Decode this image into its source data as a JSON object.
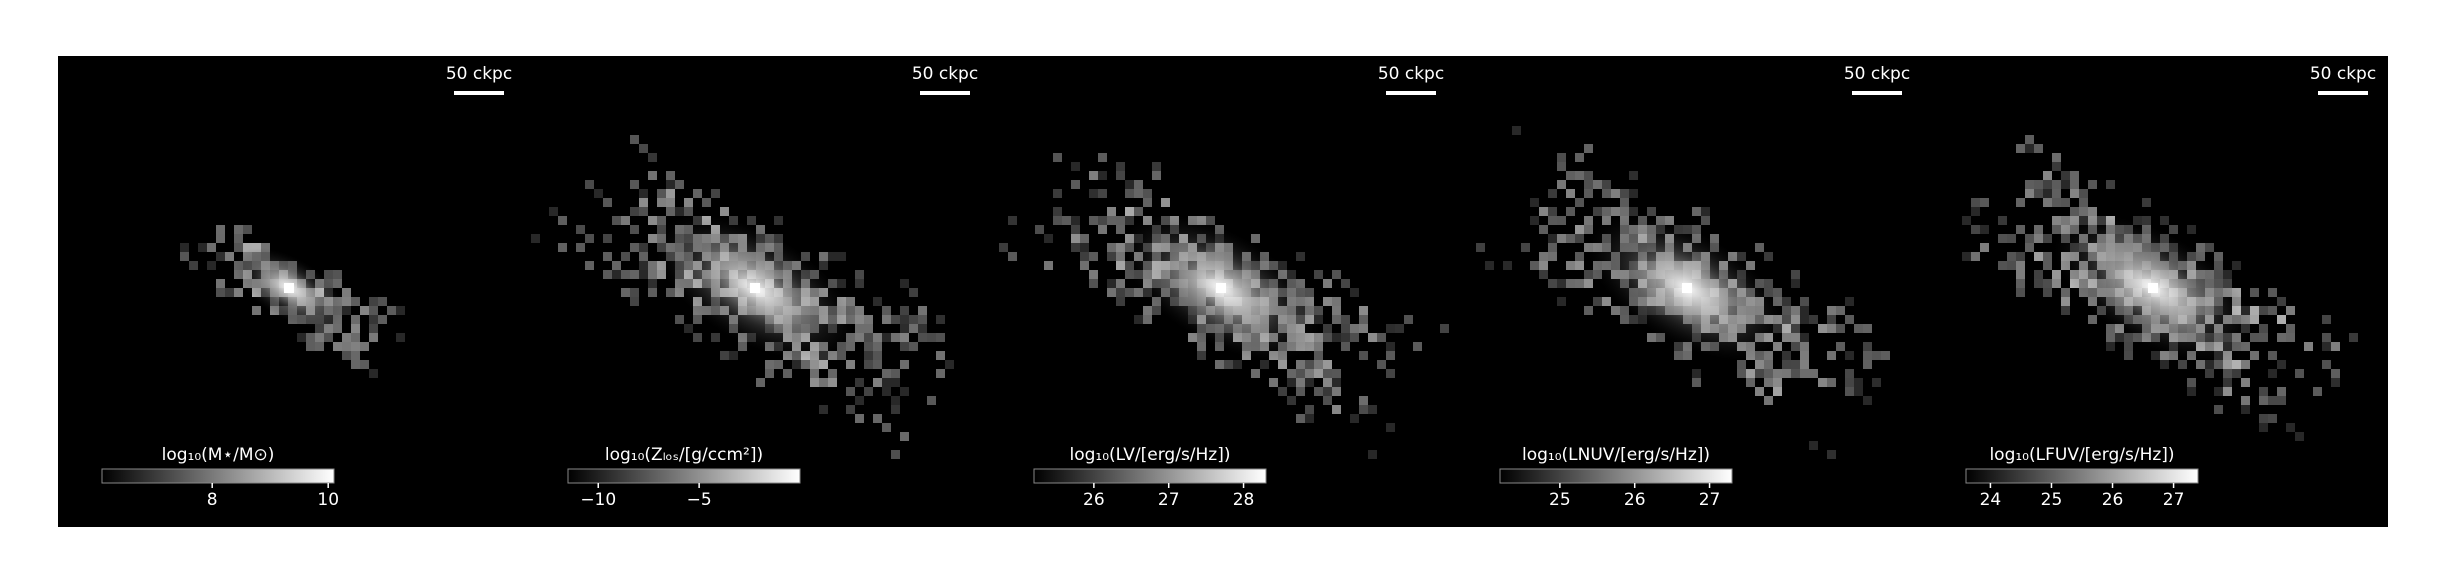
{
  "chart_data": [
    {
      "type": "heatmap",
      "scalebar_label": "50 ckpc",
      "colorbar_label": "log₁₀(M⋆/M⊙)",
      "clim": [
        6.1,
        10.1
      ],
      "colorbar_ticks": [
        8,
        10
      ]
    },
    {
      "type": "heatmap",
      "scalebar_label": "50 ckpc",
      "colorbar_label": "log₁₀(Zₗₒₛ/[g/ccm²])",
      "clim": [
        -11.5,
        0
      ],
      "colorbar_ticks": [
        {
          "value": -10,
          "label": "−10"
        },
        {
          "value": -5,
          "label": "−5"
        }
      ]
    },
    {
      "type": "heatmap",
      "scalebar_label": "50 ckpc",
      "colorbar_label": "log₁₀(LV/[erg/s/Hz])",
      "clim": [
        25.2,
        28.3
      ],
      "colorbar_ticks": [
        26,
        27,
        28
      ]
    },
    {
      "type": "heatmap",
      "scalebar_label": "50 ckpc",
      "colorbar_label": "log₁₀(LNUV/[erg/s/Hz])",
      "clim": [
        24.2,
        27.3
      ],
      "colorbar_ticks": [
        25,
        26,
        27
      ]
    },
    {
      "type": "heatmap",
      "scalebar_label": "50 ckpc",
      "colorbar_label": "log₁₀(LFUV/[erg/s/Hz])",
      "clim": [
        23.6,
        27.4
      ],
      "colorbar_ticks": [
        24,
        25,
        26,
        27
      ]
    }
  ]
}
